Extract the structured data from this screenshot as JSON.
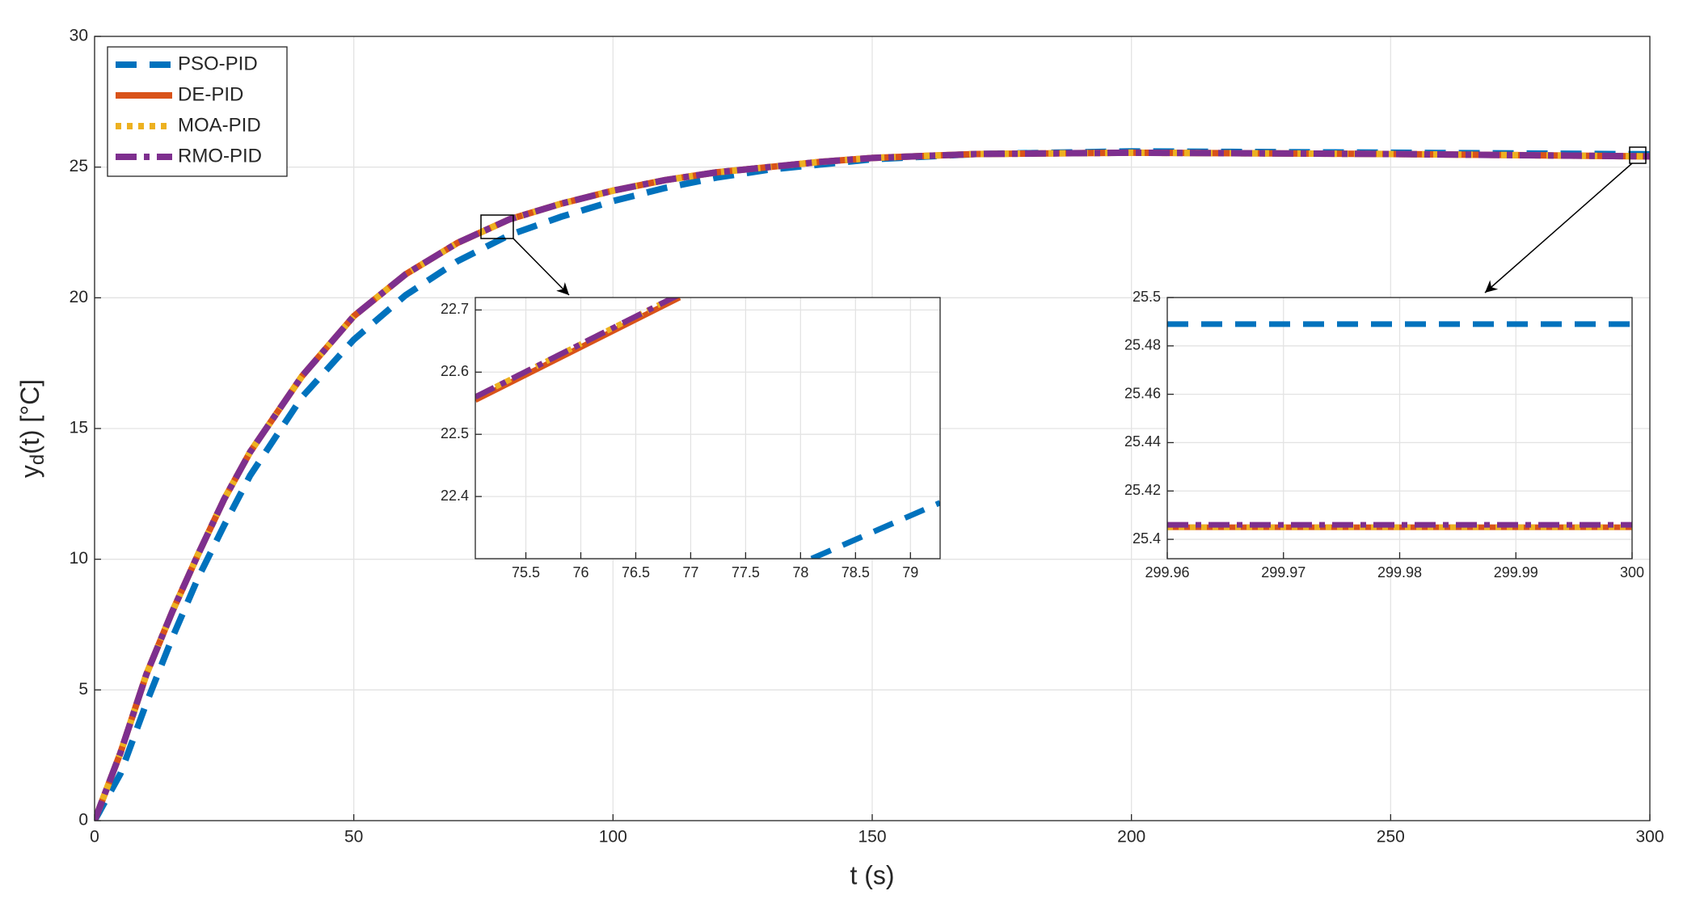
{
  "chart_data": [
    {
      "type": "line",
      "xlabel": "t (s)",
      "ylabel": "yd(t) [°C]",
      "x": [
        0,
        5,
        10,
        15,
        20,
        25,
        30,
        40,
        50,
        60,
        70,
        80,
        90,
        100,
        110,
        120,
        130,
        140,
        150,
        170,
        200,
        250,
        300
      ],
      "series": [
        {
          "name": "PSO-PID",
          "color": "#0072bd",
          "linestyle": "dashed",
          "values": [
            0,
            1.8,
            4.5,
            7.0,
            9.3,
            11.3,
            13.2,
            16.2,
            18.4,
            20.1,
            21.4,
            22.4,
            23.1,
            23.7,
            24.2,
            24.6,
            24.9,
            25.1,
            25.3,
            25.5,
            25.6,
            25.55,
            25.49
          ]
        },
        {
          "name": "DE-PID",
          "color": "#d95319",
          "linestyle": "solid",
          "values": [
            0,
            2.6,
            5.6,
            8.0,
            10.2,
            12.3,
            14.1,
            17.0,
            19.3,
            20.9,
            22.1,
            23.0,
            23.6,
            24.1,
            24.5,
            24.8,
            25.0,
            25.2,
            25.35,
            25.5,
            25.55,
            25.5,
            25.41
          ]
        },
        {
          "name": "MOA-PID",
          "color": "#edb120",
          "linestyle": "dotted",
          "values": [
            0,
            2.6,
            5.6,
            8.0,
            10.2,
            12.3,
            14.1,
            17.0,
            19.3,
            20.9,
            22.1,
            23.0,
            23.6,
            24.1,
            24.5,
            24.8,
            25.0,
            25.2,
            25.35,
            25.5,
            25.55,
            25.5,
            25.41
          ]
        },
        {
          "name": "RMO-PID",
          "color": "#7e2f8e",
          "linestyle": "dashdot",
          "values": [
            0,
            2.6,
            5.6,
            8.0,
            10.2,
            12.3,
            14.1,
            17.0,
            19.3,
            20.9,
            22.1,
            23.0,
            23.6,
            24.1,
            24.5,
            24.8,
            25.0,
            25.2,
            25.35,
            25.5,
            25.55,
            25.5,
            25.41
          ]
        }
      ],
      "xlim": [
        0,
        300
      ],
      "xticks": [
        0,
        50,
        100,
        150,
        200,
        250,
        300
      ],
      "ylim": [
        0,
        30
      ],
      "yticks": [
        0,
        5,
        10,
        15,
        20,
        25,
        30
      ],
      "grid": true,
      "legend": "upper left"
    },
    {
      "type": "line",
      "x": [
        75.04,
        76.9,
        78.1,
        79.27
      ],
      "series": [
        {
          "name": "PSO-PID",
          "color": "#0072bd",
          "linestyle": "dashed",
          "values": [
            null,
            null,
            22.3,
            22.39
          ]
        },
        {
          "name": "DE-PID",
          "color": "#d95319",
          "linestyle": "solid",
          "values": [
            22.555,
            22.72,
            null,
            null
          ]
        },
        {
          "name": "MOA-PID",
          "color": "#edb120",
          "linestyle": "dotted",
          "values": [
            22.56,
            22.725,
            null,
            null
          ]
        },
        {
          "name": "RMO-PID",
          "color": "#7e2f8e",
          "linestyle": "dashdot",
          "values": [
            22.56,
            22.725,
            null,
            null
          ]
        }
      ],
      "xlim": [
        75.04,
        79.27
      ],
      "xticks": [
        75.5,
        76,
        76.5,
        77,
        77.5,
        78,
        78.5,
        79
      ],
      "ylim": [
        22.3,
        22.72
      ],
      "yticks": [
        22.4,
        22.5,
        22.6,
        22.7
      ],
      "grid": true
    },
    {
      "type": "line",
      "x": [
        299.96,
        300
      ],
      "series": [
        {
          "name": "PSO-PID",
          "color": "#0072bd",
          "linestyle": "dashed",
          "values": [
            25.489,
            25.489
          ]
        },
        {
          "name": "DE-PID",
          "color": "#d95319",
          "linestyle": "solid",
          "values": [
            25.405,
            25.405
          ]
        },
        {
          "name": "MOA-PID",
          "color": "#edb120",
          "linestyle": "dotted",
          "values": [
            25.405,
            25.405
          ]
        },
        {
          "name": "RMO-PID",
          "color": "#7e2f8e",
          "linestyle": "dashdot",
          "values": [
            25.406,
            25.406
          ]
        }
      ],
      "xlim": [
        299.96,
        300
      ],
      "xticks": [
        299.96,
        299.97,
        299.98,
        299.99,
        300
      ],
      "ylim": [
        25.392,
        25.5
      ],
      "yticks": [
        25.4,
        25.42,
        25.44,
        25.46,
        25.48,
        25.5
      ],
      "grid": true
    }
  ]
}
